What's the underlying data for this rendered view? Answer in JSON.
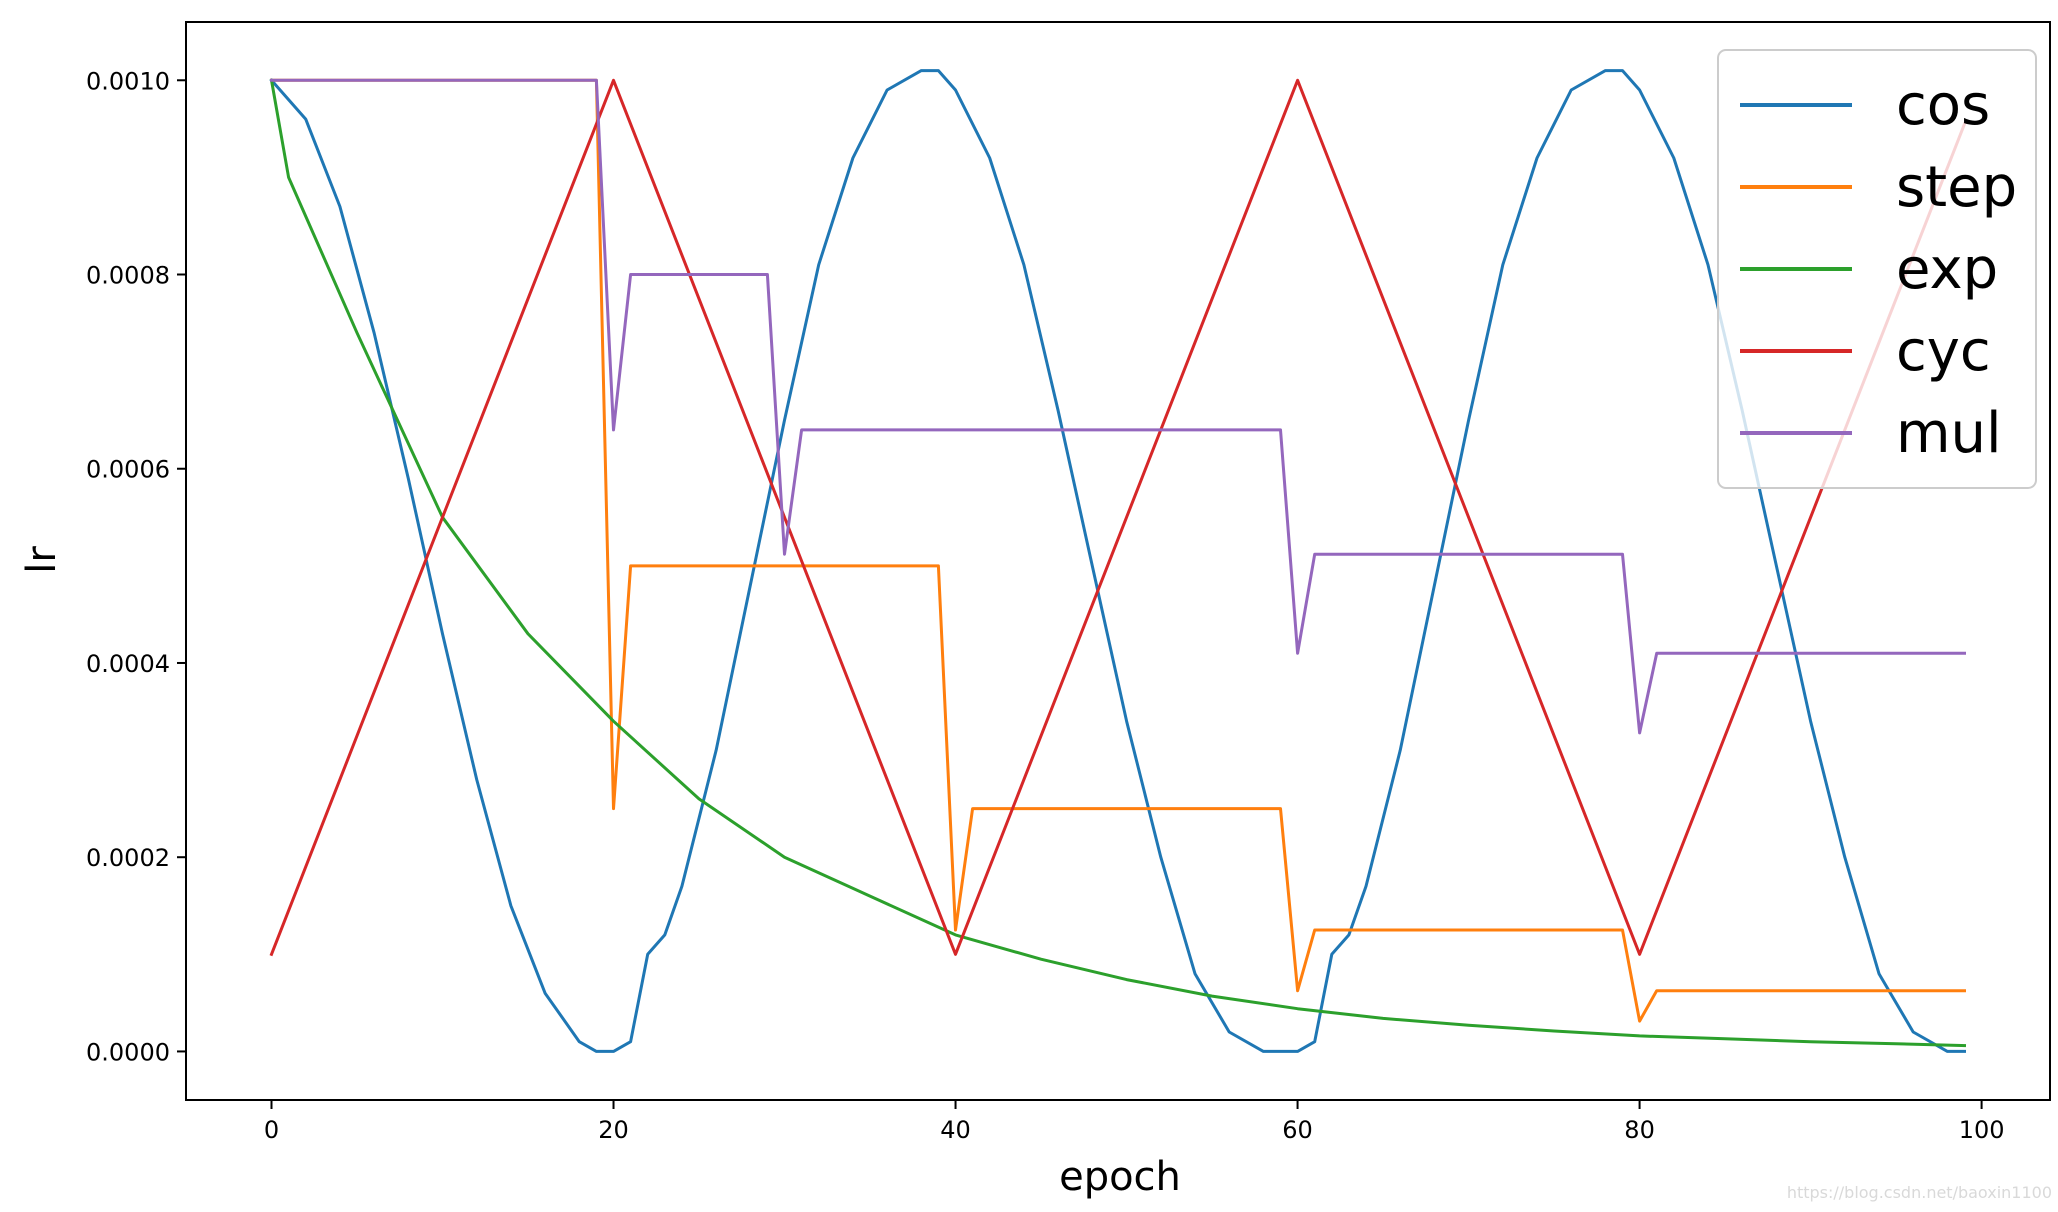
{
  "chart_data": {
    "type": "line",
    "title": "",
    "xlabel": "epoch",
    "ylabel": "lr",
    "xlim": [
      -5,
      104
    ],
    "ylim": [
      -5e-05,
      0.00106
    ],
    "xticks": [
      0,
      20,
      40,
      60,
      80,
      100
    ],
    "xtick_labels": [
      "0",
      "20",
      "40",
      "60",
      "80",
      "100"
    ],
    "yticks": [
      0,
      0.0002,
      0.0004,
      0.0006,
      0.0008,
      0.001
    ],
    "ytick_labels": [
      "0.0000",
      "0.0002",
      "0.0004",
      "0.0006",
      "0.0008",
      "0.0010"
    ],
    "grid": false,
    "legend_position": "top-right",
    "series": [
      {
        "name": "cos",
        "color": "#1f77b4",
        "x": [
          0,
          2,
          4,
          6,
          8,
          10,
          12,
          14,
          16,
          18,
          19,
          20,
          21,
          22,
          23,
          24,
          26,
          28,
          30,
          32,
          34,
          36,
          38,
          39,
          40,
          42,
          44,
          46,
          48,
          50,
          52,
          54,
          56,
          58,
          59,
          60,
          61,
          62,
          63,
          64,
          66,
          68,
          70,
          72,
          74,
          76,
          78,
          79,
          80,
          82,
          84,
          86,
          88,
          90,
          92,
          94,
          96,
          98,
          99
        ],
        "y": [
          0.001,
          0.00096,
          0.00087,
          0.00074,
          0.00059,
          0.00043,
          0.00028,
          0.00015,
          6e-05,
          1e-05,
          0.0,
          0.0,
          1e-05,
          0.0001,
          0.00012,
          0.00017,
          0.00031,
          0.00048,
          0.00065,
          0.00081,
          0.00092,
          0.00099,
          0.00101,
          0.00101,
          0.00099,
          0.00092,
          0.00081,
          0.00066,
          0.0005,
          0.00034,
          0.0002,
          8e-05,
          2e-05,
          0.0,
          0.0,
          0.0,
          1e-05,
          0.0001,
          0.00012,
          0.00017,
          0.00031,
          0.00048,
          0.00065,
          0.00081,
          0.00092,
          0.00099,
          0.00101,
          0.00101,
          0.00099,
          0.00092,
          0.00081,
          0.00066,
          0.0005,
          0.00034,
          0.0002,
          8e-05,
          2e-05,
          0.0,
          0.0
        ]
      },
      {
        "name": "step",
        "color": "#ff7f0e",
        "x": [
          0,
          19,
          20,
          21,
          39,
          40,
          41,
          59,
          60,
          61,
          79,
          80,
          81,
          99
        ],
        "y": [
          0.001,
          0.001,
          0.00025,
          0.0005,
          0.0005,
          0.000125,
          0.00025,
          0.00025,
          6.25e-05,
          0.000125,
          0.000125,
          3.125e-05,
          6.25e-05,
          6.25e-05
        ]
      },
      {
        "name": "exp",
        "color": "#2ca02c",
        "x": [
          0,
          1,
          5,
          10,
          15,
          20,
          25,
          30,
          35,
          40,
          45,
          50,
          55,
          60,
          65,
          70,
          75,
          80,
          85,
          90,
          95,
          99
        ],
        "y": [
          0.001,
          0.0009,
          0.00074,
          0.00055,
          0.00043,
          0.00034,
          0.00026,
          0.0002,
          0.00016,
          0.00012,
          9.5e-05,
          7.4e-05,
          5.7e-05,
          4.4e-05,
          3.4e-05,
          2.7e-05,
          2.1e-05,
          1.6e-05,
          1.3e-05,
          1e-05,
          8e-06,
          6e-06
        ]
      },
      {
        "name": "cyc",
        "color": "#d62728",
        "x": [
          0,
          20,
          40,
          60,
          80,
          99
        ],
        "y": [
          0.0001,
          0.001,
          0.0001,
          0.001,
          0.0001,
          0.000955
        ]
      },
      {
        "name": "mul",
        "color": "#9467bd",
        "x": [
          0,
          19,
          20,
          21,
          29,
          30,
          31,
          59,
          60,
          61,
          79,
          80,
          81,
          99
        ],
        "y": [
          0.001,
          0.001,
          0.00064,
          0.0008,
          0.0008,
          0.000512,
          0.00064,
          0.00064,
          0.00041,
          0.000512,
          0.000512,
          0.000328,
          0.00041,
          0.00041
        ]
      }
    ]
  },
  "watermark": "https://blog.csdn.net/baoxin1100"
}
